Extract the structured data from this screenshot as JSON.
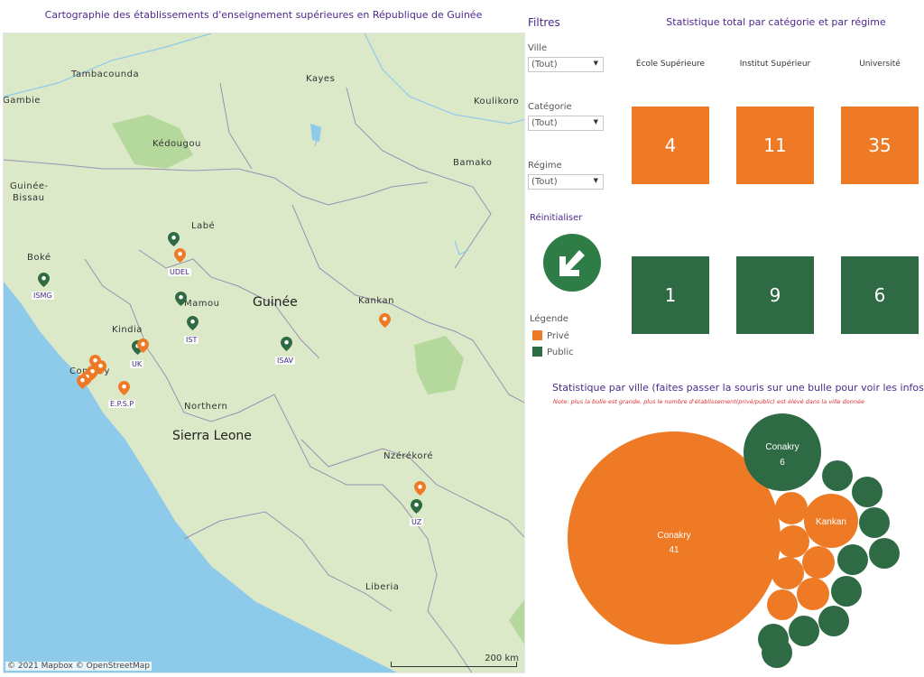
{
  "map": {
    "title": "Cartographie  des établissements d'enseignement supérieures en République de Guinée",
    "attribution": "© 2021 Mapbox  © OpenStreetMap",
    "scale_label": "200 km",
    "places": {
      "tambacounda": "Tambacounda",
      "kayes": "Kayes",
      "gambie": "Gambie",
      "koulikoro": "Koulikoro",
      "kedougou": "Kédougou",
      "bamako": "Bamako",
      "guinee_bissau_1": "Guinée-",
      "guinee_bissau_2": "Bissau",
      "labe": "Labé",
      "boke": "Boké",
      "mamou": "Mamou",
      "guinee": "Guinée",
      "kankan": "Kankan",
      "kindia": "Kindia",
      "conakry": "Conakry",
      "northern": "Northern",
      "sierra_leone": "Sierra Leone",
      "nzerekore": "Nzérékoré",
      "liberia": "Liberia"
    },
    "pins": {
      "udel": "UDEL",
      "ismg": "ISMG",
      "ist": "IST",
      "uk": "UK",
      "isav": "ISAV",
      "epsp": "E.P.S.P",
      "uz": "UZ"
    }
  },
  "filters": {
    "title": "Filtres",
    "ville": {
      "label": "Ville",
      "value": "(Tout)"
    },
    "categorie": {
      "label": "Catégorie",
      "value": "(Tout)"
    },
    "regime": {
      "label": "Régime",
      "value": "(Tout)"
    },
    "reset_label": "Réinitialiser"
  },
  "legend": {
    "title": "Légende",
    "items": [
      {
        "label": "Privé",
        "color": "#ef7a26"
      },
      {
        "label": "Public",
        "color": "#2e6b44"
      }
    ]
  },
  "stats": {
    "title": "Statistique total par catégorie et par régime",
    "columns": [
      "École Supérieure",
      "Institut Supérieur",
      "Université"
    ],
    "prive": [
      "4",
      "11",
      "35"
    ],
    "public": [
      "1",
      "9",
      "6"
    ],
    "prive_color": "#ef7a26",
    "public_color": "#2e6b44"
  },
  "bubbles": {
    "title": "Statistique par ville (faites passer la souris sur une bulle pour voir les infos)",
    "note": "Note: plus la bulle est grande, plus le nombre d'établissement(privé/public) est élevé dans la ville donnée",
    "conakry_prive": {
      "city": "Conakry",
      "count": "41"
    },
    "conakry_public": {
      "city": "Conakry",
      "count": "6"
    },
    "kankan": {
      "city": "Kankan"
    }
  },
  "colors": {
    "orange": "#ef7a26",
    "green": "#2e6b44",
    "accent_purple": "#4b2a8c"
  }
}
